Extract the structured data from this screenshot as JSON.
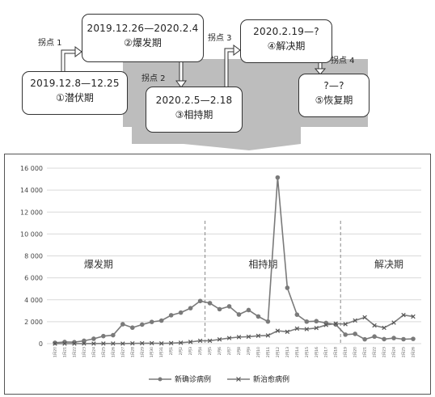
{
  "diagram": {
    "phases": [
      {
        "dates": "2019.12.8—12.25",
        "name": "①潜伏期"
      },
      {
        "dates": "2019.12.26—2020.2.4",
        "name": "②爆发期"
      },
      {
        "dates": "2020.2.5—2.18",
        "name": "③相持期"
      },
      {
        "dates": "2020.2.19—?",
        "name": "④解决期"
      },
      {
        "dates": "?—?",
        "name": "⑤恢复期"
      }
    ],
    "turning_points": [
      "拐点 1",
      "拐点 2",
      "拐点 3",
      "拐点 4"
    ]
  },
  "chart_data": {
    "type": "line",
    "x": [
      "1月20",
      "1月21",
      "1月22",
      "1月23",
      "1月24",
      "1月25",
      "1月26",
      "1月27",
      "1月28",
      "1月29",
      "1月30",
      "1月31",
      "2月1",
      "2月2",
      "2月3",
      "2月4",
      "2月5",
      "2月6",
      "2月7",
      "2月8",
      "2月9",
      "2月10",
      "2月11",
      "2月12",
      "2月13",
      "2月14",
      "2月15",
      "2月16",
      "2月17",
      "2月18",
      "2月19",
      "2月20",
      "2月21",
      "2月22",
      "2月23",
      "2月24",
      "2月25",
      "2月26"
    ],
    "series": [
      {
        "name": "新确诊病例",
        "marker": "circle",
        "values": [
          77,
          149,
          131,
          259,
          444,
          688,
          769,
          1771,
          1459,
          1737,
          1982,
          2102,
          2590,
          2829,
          3235,
          3887,
          3694,
          3143,
          3399,
          2656,
          3062,
          2478,
          2015,
          15152,
          5090,
          2641,
          2009,
          2048,
          1886,
          1749,
          820,
          889,
          397,
          648,
          409,
          508,
          406,
          433
        ]
      },
      {
        "name": "新治愈病例",
        "marker": "x",
        "values": [
          0,
          0,
          0,
          6,
          4,
          11,
          9,
          4,
          24,
          33,
          43,
          21,
          47,
          85,
          157,
          262,
          262,
          387,
          510,
          600,
          632,
          716,
          744,
          1171,
          1081,
          1373,
          1323,
          1425,
          1701,
          1824,
          1779,
          2109,
          2394,
          1661,
          1441,
          1919,
          2611,
          2470
        ]
      }
    ],
    "ylim": [
      0,
      16000
    ],
    "yticks": [
      "0",
      "2 000",
      "4 000",
      "6 000",
      "8 000",
      "10 000",
      "12 000",
      "14 000",
      "16 000"
    ],
    "phase_labels": [
      "爆发期",
      "相持期",
      "解决期"
    ],
    "grid": true,
    "legend": "bottom"
  },
  "colors": {
    "line": "#7a7a7a",
    "grid": "#d9d9d9",
    "funnel": "#bdbdbd",
    "divider": "#888888"
  }
}
